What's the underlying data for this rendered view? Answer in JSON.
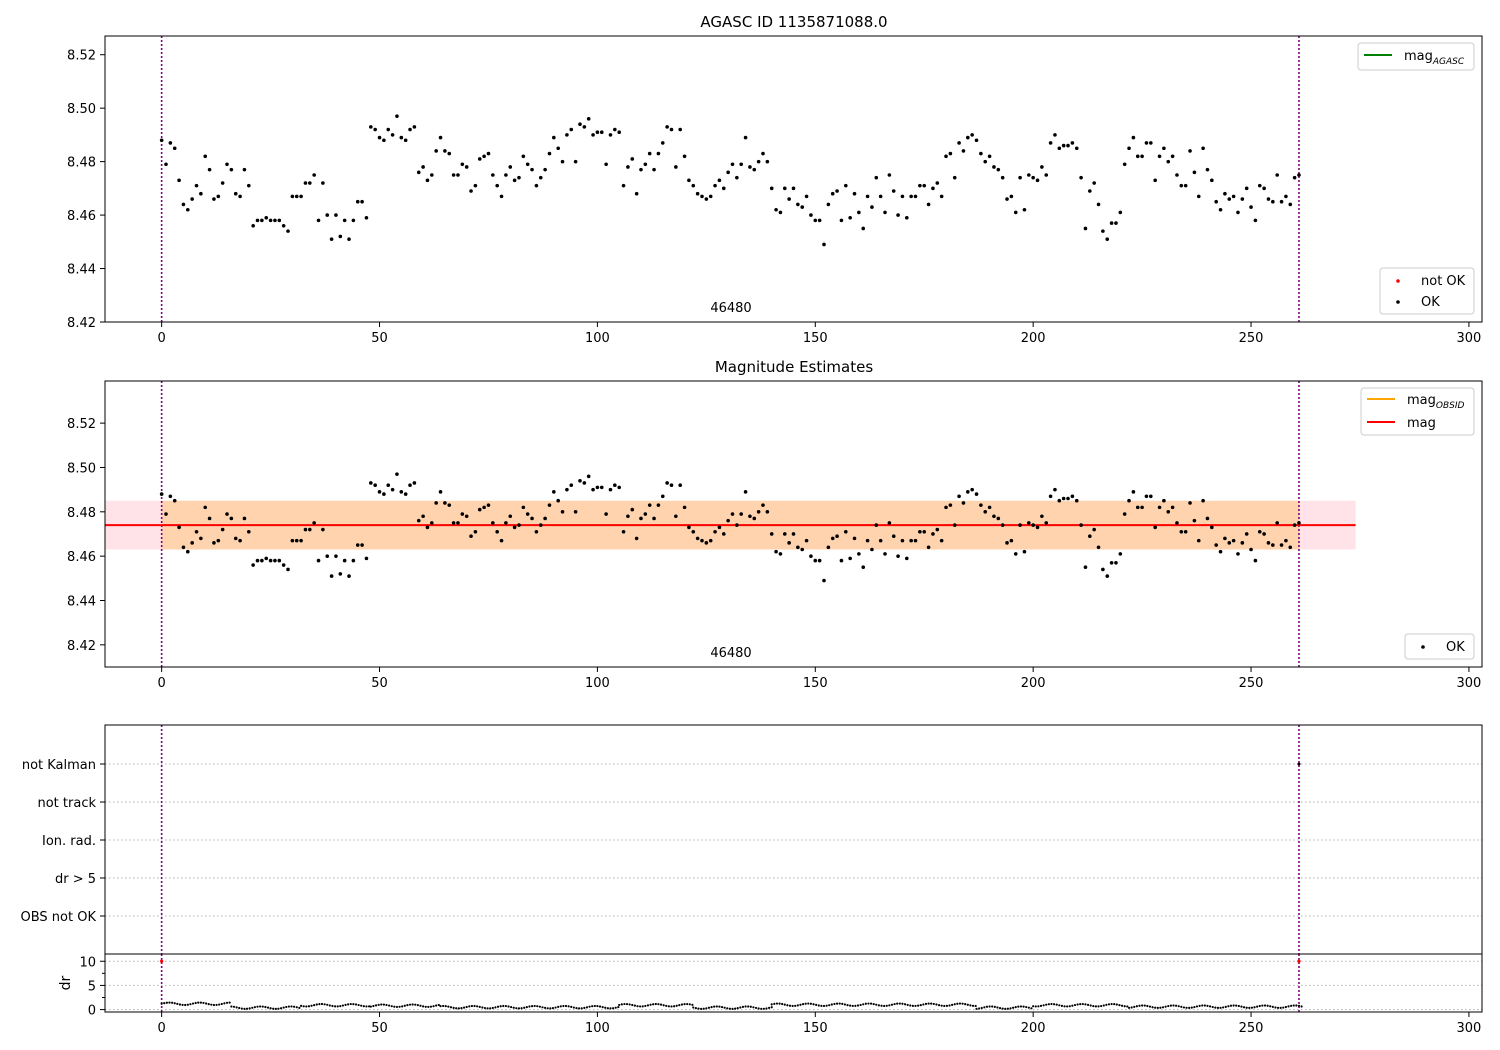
{
  "chart_data": [
    {
      "type": "scatter",
      "title": "AGASC ID 1135871088.0",
      "xlim": [
        -13,
        303
      ],
      "ylim": [
        8.42,
        8.527
      ],
      "xticks": [
        0,
        50,
        100,
        150,
        200,
        250,
        300
      ],
      "yticks": [
        8.42,
        8.44,
        8.46,
        8.48,
        8.5,
        8.52
      ],
      "ytick_labels": [
        "8.42",
        "8.44",
        "8.46",
        "8.48",
        "8.50",
        "8.52"
      ],
      "obsid_label": "46480",
      "vlines": [
        0,
        261
      ],
      "legend_lines": [
        {
          "label": "mag",
          "sub": "AGASC",
          "color": "#008000"
        }
      ],
      "legend_points": [
        {
          "label": "not OK",
          "color": "#ff0000"
        },
        {
          "label": "OK",
          "color": "#000000"
        }
      ],
      "series_ref": "ok_mag"
    },
    {
      "type": "scatter",
      "title": "Magnitude Estimates",
      "xlim": [
        -13,
        303
      ],
      "ylim": [
        8.41,
        8.539
      ],
      "xticks": [
        0,
        50,
        100,
        150,
        200,
        250,
        300
      ],
      "yticks": [
        8.42,
        8.44,
        8.46,
        8.48,
        8.5,
        8.52
      ],
      "ytick_labels": [
        "8.42",
        "8.44",
        "8.46",
        "8.48",
        "8.50",
        "8.52"
      ],
      "obsid_label": "46480",
      "vlines": [
        0,
        261
      ],
      "mag_mean": 8.474,
      "band": [
        8.463,
        8.485
      ],
      "band_extent_x": [
        -13,
        274
      ],
      "legend_lines": [
        {
          "label": "mag",
          "sub": "OBSID",
          "color": "#ffa500"
        },
        {
          "label": "mag",
          "sub": "",
          "color": "#ff0000"
        }
      ],
      "legend_points": [
        {
          "label": "OK",
          "color": "#000000"
        }
      ],
      "series_ref": "ok_mag"
    },
    {
      "type": "scatter",
      "categories": [
        "OBS not OK",
        "dr > 5",
        "Ion. rad.",
        "not track",
        "not Kalman"
      ],
      "vlines": [
        0,
        261
      ],
      "flags": [
        {
          "x": 261,
          "category": "not Kalman"
        }
      ]
    },
    {
      "type": "scatter",
      "ylabel": "dr",
      "xlim": [
        -13,
        303
      ],
      "ylim": [
        -0.5,
        11.5
      ],
      "xticks": [
        0,
        50,
        100,
        150,
        200,
        250,
        300
      ],
      "yticks": [
        0,
        5,
        10
      ],
      "vlines": [
        0,
        261
      ],
      "bad_points": [
        {
          "x": 0,
          "y": 10
        },
        {
          "x": 261,
          "y": 10
        }
      ],
      "dr_segments": [
        {
          "x0": 0,
          "x1": 16,
          "base": 1.2
        },
        {
          "x0": 16,
          "x1": 32,
          "base": 0.4
        },
        {
          "x0": 32,
          "x1": 48,
          "base": 0.9
        },
        {
          "x0": 48,
          "x1": 64,
          "base": 0.8
        },
        {
          "x0": 64,
          "x1": 105,
          "base": 0.5
        },
        {
          "x0": 105,
          "x1": 122,
          "base": 0.9
        },
        {
          "x0": 122,
          "x1": 140,
          "base": 0.4
        },
        {
          "x0": 140,
          "x1": 187,
          "base": 1.0
        },
        {
          "x0": 187,
          "x1": 200,
          "base": 0.4
        },
        {
          "x0": 200,
          "x1": 222,
          "base": 0.9
        },
        {
          "x0": 222,
          "x1": 262,
          "base": 0.6
        }
      ]
    }
  ],
  "ok_mag": {
    "x": [
      0,
      1,
      2,
      3,
      4,
      5,
      6,
      7,
      8,
      9,
      10,
      11,
      12,
      13,
      14,
      15,
      16,
      17,
      18,
      19,
      20,
      21,
      22,
      23,
      24,
      25,
      26,
      27,
      28,
      29,
      30,
      31,
      32,
      33,
      34,
      35,
      36,
      37,
      38,
      39,
      40,
      41,
      42,
      43,
      44,
      45,
      46,
      47,
      48,
      49,
      50,
      51,
      52,
      53,
      54,
      55,
      56,
      57,
      58,
      59,
      60,
      61,
      62,
      63,
      64,
      65,
      66,
      67,
      68,
      69,
      70,
      71,
      72,
      73,
      74,
      75,
      76,
      77,
      78,
      79,
      80,
      81,
      82,
      83,
      84,
      85,
      86,
      87,
      88,
      89,
      90,
      91,
      92,
      93,
      94,
      95,
      96,
      97,
      98,
      99,
      100,
      101,
      102,
      103,
      104,
      105,
      106,
      107,
      108,
      109,
      110,
      111,
      112,
      113,
      114,
      115,
      116,
      117,
      118,
      119,
      120,
      121,
      122,
      123,
      124,
      125,
      126,
      127,
      128,
      129,
      130,
      131,
      132,
      133,
      134,
      135,
      136,
      137,
      138,
      139,
      140,
      141,
      142,
      143,
      144,
      145,
      146,
      147,
      148,
      149,
      150,
      151,
      152,
      153,
      154,
      155,
      156,
      157,
      158,
      159,
      160,
      161,
      162,
      163,
      164,
      165,
      166,
      167,
      168,
      169,
      170,
      171,
      172,
      173,
      174,
      175,
      176,
      177,
      178,
      179,
      180,
      181,
      182,
      183,
      184,
      185,
      186,
      187,
      188,
      189,
      190,
      191,
      192,
      193,
      194,
      195,
      196,
      197,
      198,
      199,
      200,
      201,
      202,
      203,
      204,
      205,
      206,
      207,
      208,
      209,
      210,
      211,
      212,
      213,
      214,
      215,
      216,
      217,
      218,
      219,
      220,
      221,
      222,
      223,
      224,
      225,
      226,
      227,
      228,
      229,
      230,
      231,
      232,
      233,
      234,
      235,
      236,
      237,
      238,
      239,
      240,
      241,
      242,
      243,
      244,
      245,
      246,
      247,
      248,
      249,
      250,
      251,
      252,
      253,
      254,
      255,
      256,
      257,
      258,
      259,
      260,
      261
    ],
    "y": [
      8.488,
      8.479,
      8.487,
      8.485,
      8.473,
      8.464,
      8.462,
      8.466,
      8.471,
      8.468,
      8.482,
      8.477,
      8.466,
      8.467,
      8.472,
      8.479,
      8.477,
      8.468,
      8.467,
      8.477,
      8.471,
      8.456,
      8.458,
      8.458,
      8.459,
      8.458,
      8.458,
      8.458,
      8.456,
      8.454,
      8.467,
      8.467,
      8.467,
      8.472,
      8.472,
      8.475,
      8.458,
      8.472,
      8.46,
      8.451,
      8.46,
      8.452,
      8.458,
      8.451,
      8.458,
      8.465,
      8.465,
      8.459,
      8.493,
      8.492,
      8.489,
      8.488,
      8.492,
      8.49,
      8.497,
      8.489,
      8.488,
      8.492,
      8.493,
      8.476,
      8.478,
      8.473,
      8.475,
      8.484,
      8.489,
      8.484,
      8.483,
      8.475,
      8.475,
      8.479,
      8.478,
      8.469,
      8.471,
      8.481,
      8.482,
      8.483,
      8.475,
      8.471,
      8.467,
      8.475,
      8.478,
      8.473,
      8.474,
      8.482,
      8.479,
      8.477,
      8.471,
      8.474,
      8.477,
      8.483,
      8.489,
      8.485,
      8.48,
      8.49,
      8.492,
      8.48,
      8.494,
      8.493,
      8.496,
      8.49,
      8.491,
      8.491,
      8.479,
      8.49,
      8.492,
      8.491,
      8.471,
      8.478,
      8.481,
      8.468,
      8.477,
      8.479,
      8.483,
      8.477,
      8.483,
      8.487,
      8.493,
      8.492,
      8.478,
      8.492,
      8.482,
      8.473,
      8.471,
      8.468,
      8.467,
      8.466,
      8.467,
      8.471,
      8.473,
      8.47,
      8.476,
      8.479,
      8.474,
      8.479,
      8.489,
      8.478,
      8.477,
      8.48,
      8.483,
      8.48,
      8.47,
      8.462,
      8.461,
      8.47,
      8.466,
      8.47,
      8.464,
      8.463,
      8.467,
      8.46,
      8.458,
      8.458,
      8.449,
      8.464,
      8.468,
      8.469,
      8.458,
      8.471,
      8.459,
      8.468,
      8.461,
      8.455,
      8.467,
      8.463,
      8.474,
      8.467,
      8.461,
      8.475,
      8.469,
      8.46,
      8.467,
      8.459,
      8.467,
      8.467,
      8.471,
      8.471,
      8.464,
      8.47,
      8.472,
      8.467,
      8.482,
      8.483,
      8.474,
      8.487,
      8.484,
      8.489,
      8.49,
      8.488,
      8.483,
      8.48,
      8.482,
      8.478,
      8.477,
      8.474,
      8.466,
      8.467,
      8.461,
      8.474,
      8.462,
      8.475,
      8.474,
      8.473,
      8.478,
      8.475,
      8.487,
      8.49,
      8.485,
      8.486,
      8.486,
      8.487,
      8.485,
      8.474,
      8.455,
      8.469,
      8.472,
      8.464,
      8.454,
      8.451,
      8.457,
      8.457,
      8.461,
      8.479,
      8.485,
      8.489,
      8.482,
      8.482,
      8.487,
      8.487,
      8.473,
      8.482,
      8.485,
      8.48,
      8.482,
      8.475,
      8.471,
      8.471,
      8.484,
      8.476,
      8.467,
      8.485,
      8.477,
      8.473,
      8.465,
      8.462,
      8.468,
      8.466,
      8.467,
      8.461,
      8.466,
      8.47,
      8.463,
      8.458,
      8.471,
      8.47,
      8.466,
      8.465,
      8.475,
      8.465,
      8.467,
      8.464,
      8.474,
      8.475
    ]
  }
}
